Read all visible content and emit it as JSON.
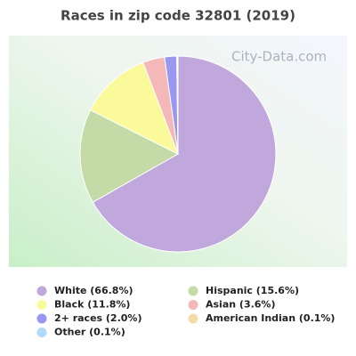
{
  "chart_data": {
    "type": "pie",
    "title": "Races in zip code 32801 (2019)",
    "watermark": "City-Data.com",
    "categories": [
      "White (66.8%)",
      "Hispanic (15.6%)",
      "Black (11.8%)",
      "Asian (3.6%)",
      "2+ races (2.0%)",
      "American Indian (0.1%)",
      "Other (0.1%)"
    ],
    "values": [
      66.8,
      15.6,
      11.8,
      3.6,
      2.0,
      0.1,
      0.1
    ],
    "colors": [
      "#c0a8dc",
      "#c4dba8",
      "#fafa9a",
      "#f4b8b8",
      "#9898f0",
      "#f4dca8",
      "#b0d8f8"
    ]
  }
}
